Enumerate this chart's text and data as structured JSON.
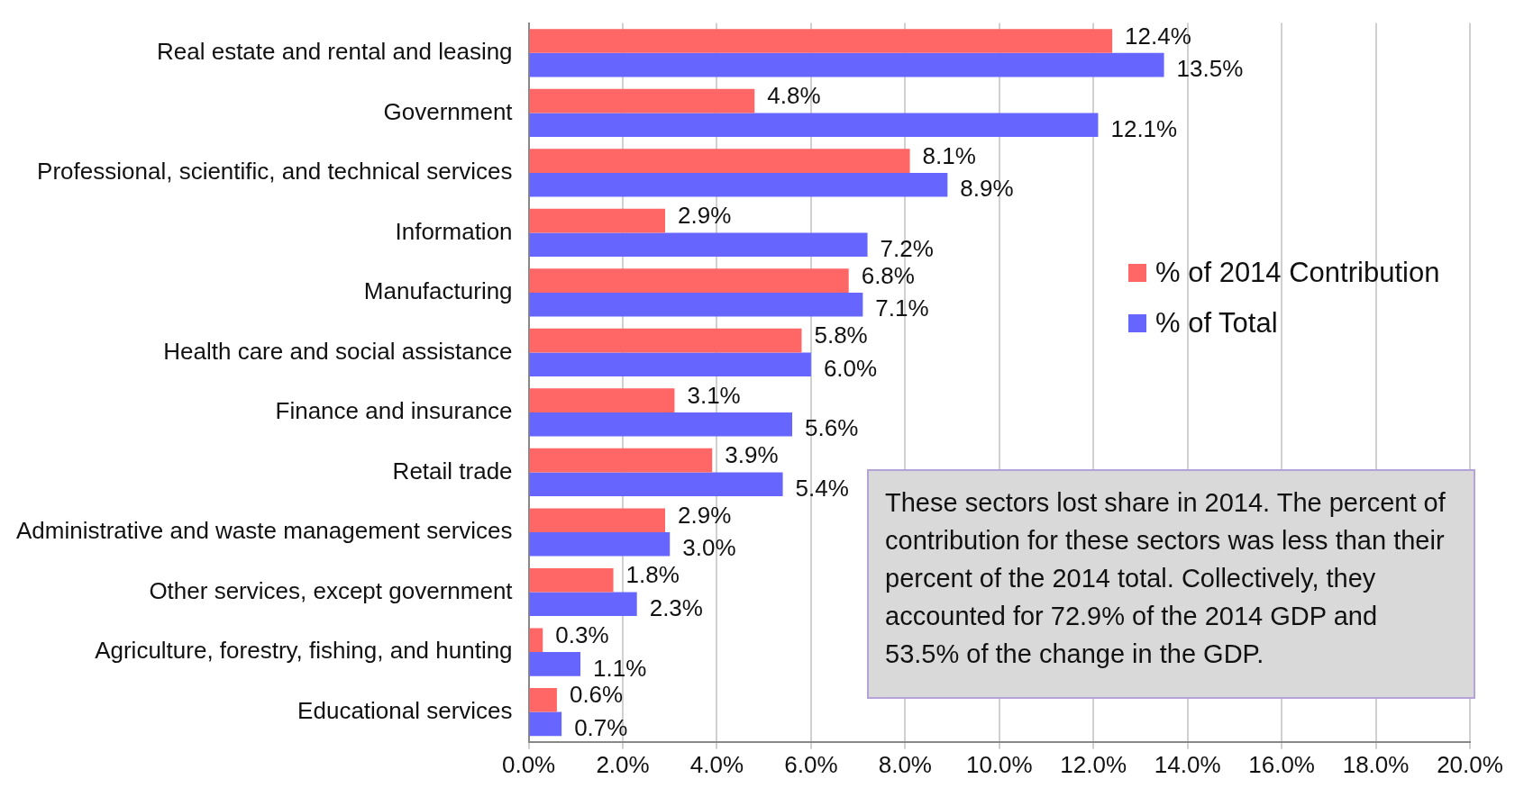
{
  "chart_data": {
    "type": "bar",
    "orientation": "horizontal",
    "categories": [
      "Real estate and rental and leasing",
      "Government",
      "Professional, scientific, and technical services",
      "Information",
      "Manufacturing",
      "Health care and social assistance",
      "Finance and insurance",
      "Retail trade",
      "Administrative and waste management services",
      "Other services, except government",
      "Agriculture, forestry, fishing, and hunting",
      "Educational services"
    ],
    "series": [
      {
        "name": "% of 2014 Contribution",
        "color": "#ff6666",
        "values": [
          12.4,
          4.8,
          8.1,
          2.9,
          6.8,
          5.8,
          3.1,
          3.9,
          2.9,
          1.8,
          0.3,
          0.6
        ],
        "value_labels": [
          "12.4%",
          "4.8%",
          "8.1%",
          "2.9%",
          "6.8%",
          "5.8%",
          "3.1%",
          "3.9%",
          "2.9%",
          "1.8%",
          "0.3%",
          "0.6%"
        ]
      },
      {
        "name": "% of Total",
        "color": "#6666ff",
        "values": [
          13.5,
          12.1,
          8.9,
          7.2,
          7.1,
          6.0,
          5.6,
          5.4,
          3.0,
          2.3,
          1.1,
          0.7
        ],
        "value_labels": [
          "13.5%",
          "12.1%",
          "8.9%",
          "7.2%",
          "7.1%",
          "6.0%",
          "5.6%",
          "5.4%",
          "3.0%",
          "2.3%",
          "1.1%",
          "0.7%"
        ]
      }
    ],
    "xlim": [
      0,
      20
    ],
    "xticks": [
      {
        "value": 0,
        "label": "0.0%"
      },
      {
        "value": 2,
        "label": "2.0%"
      },
      {
        "value": 4,
        "label": "4.0%"
      },
      {
        "value": 6,
        "label": "6.0%"
      },
      {
        "value": 8,
        "label": "8.0%"
      },
      {
        "value": 10,
        "label": "10.0%"
      },
      {
        "value": 12,
        "label": "12.0%"
      },
      {
        "value": 14,
        "label": "14.0%"
      },
      {
        "value": 16,
        "label": "16.0%"
      },
      {
        "value": 18,
        "label": "18.0%"
      },
      {
        "value": 20,
        "label": "20.0%"
      }
    ],
    "grid": "x",
    "legend": "right",
    "annotations": [
      "These sectors lost share in 2014. The percent of contribution for these sectors was less than their percent of the 2014 total. Collectively, they accounted for 72.9% of the 2014 GDP and 53.5% of the change in the GDP."
    ]
  }
}
